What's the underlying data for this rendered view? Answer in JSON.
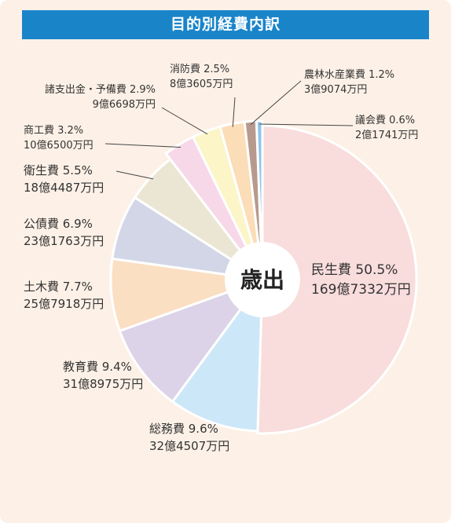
{
  "title": "目的別経費内訳",
  "chart_data": {
    "type": "pie",
    "variant": "donut",
    "title": "目的別経費内訳",
    "center_label": "歳出",
    "unit": "%",
    "start": "top",
    "direction": "clockwise",
    "slices": [
      {
        "name": "民生費",
        "percent": 50.5,
        "amount": "169億7332万円",
        "color": "#f9dcdc"
      },
      {
        "name": "総務費",
        "percent": 9.6,
        "amount": "32億4507万円",
        "color": "#cce7f8"
      },
      {
        "name": "教育費",
        "percent": 9.4,
        "amount": "31億8975万円",
        "color": "#dcd3e8"
      },
      {
        "name": "土木費",
        "percent": 7.7,
        "amount": "25億7918万円",
        "color": "#fbdfc3"
      },
      {
        "name": "公債費",
        "percent": 6.9,
        "amount": "23億1763万円",
        "color": "#d2d6e6"
      },
      {
        "name": "衛生費",
        "percent": 5.5,
        "amount": "18億4487万円",
        "color": "#ebe6d3"
      },
      {
        "name": "商工費",
        "percent": 3.2,
        "amount": "10億6500万円",
        "color": "#f7d8e8"
      },
      {
        "name": "諸支出金・予備費",
        "percent": 2.9,
        "amount": "9億6698万円",
        "color": "#fbf5c8"
      },
      {
        "name": "消防費",
        "percent": 2.5,
        "amount": "8億3605万円",
        "color": "#fbddb8"
      },
      {
        "name": "農林水産業費",
        "percent": 1.2,
        "amount": "3億9074万円",
        "color": "#b79a8d"
      },
      {
        "name": "議会費",
        "percent": 0.6,
        "amount": "2億1741万円",
        "color": "#8ec4ea"
      }
    ]
  }
}
